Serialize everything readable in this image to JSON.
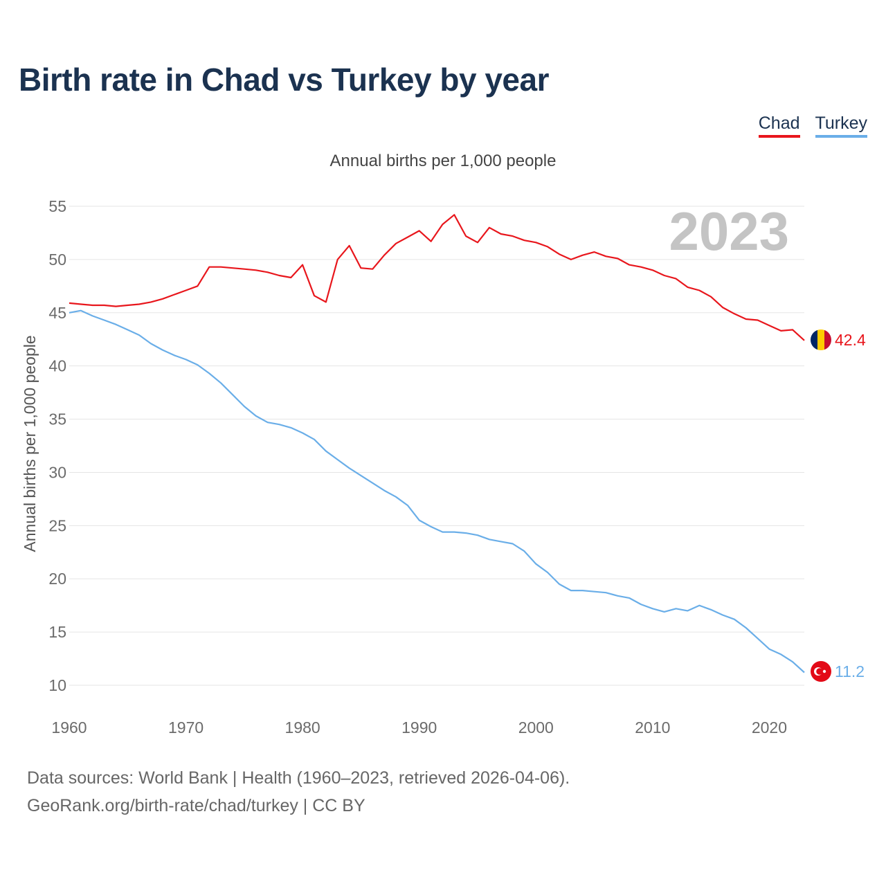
{
  "title": "Birth rate in Chad vs Turkey by year",
  "source_line1": "Data sources: World Bank | Health (1960–2023, retrieved 2026-04-06).",
  "source_line2": "GeoRank.org/birth-rate/chad/turkey | CC BY",
  "chart_data": {
    "type": "line",
    "title": "Annual births per 1,000 people",
    "xlabel": "",
    "ylabel": "Annual births per 1,000 people",
    "xlim": [
      1960,
      2023
    ],
    "ylim": [
      10,
      55
    ],
    "x_ticks": [
      "1960",
      "1970",
      "1980",
      "1990",
      "2000",
      "2010",
      "2020"
    ],
    "y_ticks": [
      "10",
      "15",
      "20",
      "25",
      "30",
      "35",
      "40",
      "45",
      "50",
      "55"
    ],
    "year_label": "2023",
    "x": [
      1960,
      1961,
      1962,
      1963,
      1964,
      1965,
      1966,
      1967,
      1968,
      1969,
      1970,
      1971,
      1972,
      1973,
      1974,
      1975,
      1976,
      1977,
      1978,
      1979,
      1980,
      1981,
      1982,
      1983,
      1984,
      1985,
      1986,
      1987,
      1988,
      1989,
      1990,
      1991,
      1992,
      1993,
      1994,
      1995,
      1996,
      1997,
      1998,
      1999,
      2000,
      2001,
      2002,
      2003,
      2004,
      2005,
      2006,
      2007,
      2008,
      2009,
      2010,
      2011,
      2012,
      2013,
      2014,
      2015,
      2016,
      2017,
      2018,
      2019,
      2020,
      2021,
      2022,
      2023
    ],
    "series": [
      {
        "name": "Chad",
        "color": "#e8161c",
        "end_label": "42.4",
        "values": [
          45.9,
          45.8,
          45.7,
          45.7,
          45.6,
          45.7,
          45.8,
          46.0,
          46.3,
          46.7,
          47.1,
          47.5,
          49.3,
          49.3,
          49.2,
          49.1,
          49.0,
          48.8,
          48.5,
          48.3,
          49.5,
          46.6,
          46.0,
          50.0,
          51.3,
          49.2,
          49.1,
          50.4,
          51.5,
          52.1,
          52.7,
          51.7,
          53.3,
          54.2,
          52.2,
          51.6,
          53.0,
          52.4,
          52.2,
          51.8,
          51.6,
          51.2,
          50.5,
          50.0,
          50.4,
          50.7,
          50.3,
          50.1,
          49.5,
          49.3,
          49.0,
          48.5,
          48.2,
          47.4,
          47.1,
          46.5,
          45.5,
          44.9,
          44.4,
          44.3,
          43.8,
          43.3,
          43.4,
          42.4
        ]
      },
      {
        "name": "Turkey",
        "color": "#6aaee8",
        "end_label": "11.2",
        "values": [
          45.0,
          45.2,
          44.7,
          44.3,
          43.9,
          43.4,
          42.9,
          42.1,
          41.5,
          41.0,
          40.6,
          40.1,
          39.3,
          38.4,
          37.3,
          36.2,
          35.3,
          34.7,
          34.5,
          34.2,
          33.7,
          33.1,
          32.0,
          31.2,
          30.4,
          29.7,
          29.0,
          28.3,
          27.7,
          26.9,
          25.5,
          24.9,
          24.4,
          24.4,
          24.3,
          24.1,
          23.7,
          23.5,
          23.3,
          22.6,
          21.4,
          20.6,
          19.5,
          18.9,
          18.9,
          18.8,
          18.7,
          18.4,
          18.2,
          17.6,
          17.2,
          16.9,
          17.2,
          17.0,
          17.5,
          17.1,
          16.6,
          16.2,
          15.4,
          14.4,
          13.4,
          12.9,
          12.2,
          11.2
        ]
      }
    ]
  }
}
